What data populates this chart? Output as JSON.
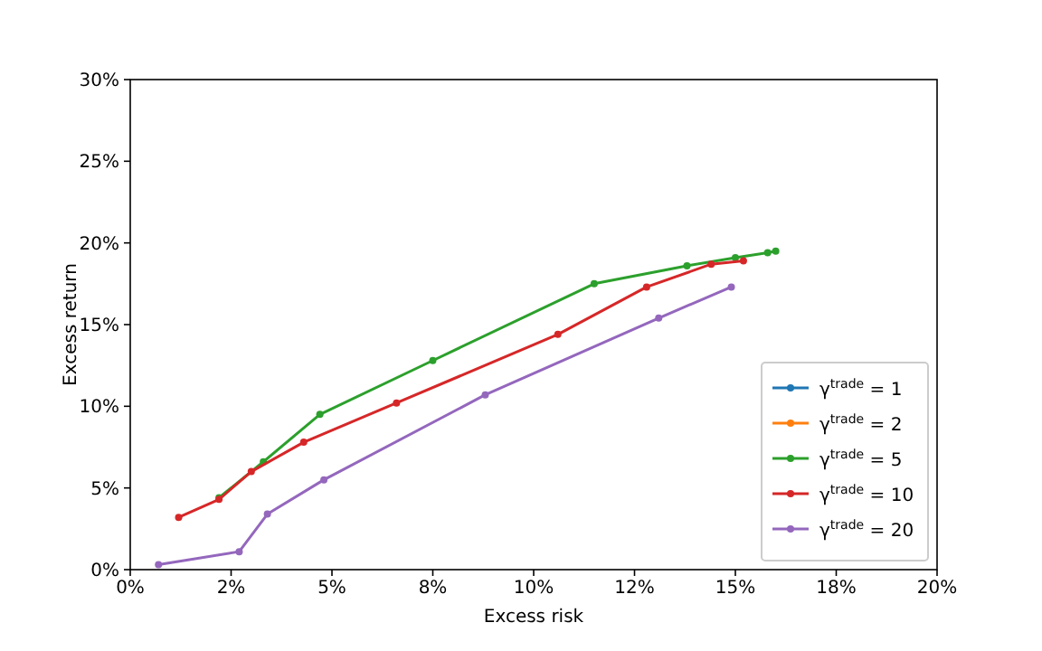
{
  "chart_data": {
    "type": "line",
    "xlabel": "Excess risk",
    "ylabel": "Excess return",
    "xlim": [
      0,
      20
    ],
    "ylim": [
      0,
      30
    ],
    "xticks": [
      {
        "value": 0,
        "label": "0%"
      },
      {
        "value": 2.5,
        "label": "2%"
      },
      {
        "value": 5,
        "label": "5%"
      },
      {
        "value": 7.5,
        "label": "8%"
      },
      {
        "value": 10,
        "label": "10%"
      },
      {
        "value": 12.5,
        "label": "12%"
      },
      {
        "value": 15,
        "label": "15%"
      },
      {
        "value": 17.5,
        "label": "18%"
      },
      {
        "value": 20,
        "label": "20%"
      }
    ],
    "yticks": [
      {
        "value": 0,
        "label": "0%"
      },
      {
        "value": 5,
        "label": "5%"
      },
      {
        "value": 10,
        "label": "10%"
      },
      {
        "value": 15,
        "label": "15%"
      },
      {
        "value": 20,
        "label": "20%"
      },
      {
        "value": 25,
        "label": "25%"
      },
      {
        "value": 30,
        "label": "30%"
      }
    ],
    "grid": false,
    "legend": "bottom right",
    "marker": "circle",
    "line_style": "solid",
    "series": [
      {
        "name": "γ$^{trade}$ = 1",
        "color": "#1f77b4"
      },
      {
        "name": "γ$^{trade}$ = 2",
        "color": "#ff7f0e"
      },
      {
        "name": "γ$^{trade}$ = 5",
        "color": "#2ca02c",
        "x": [
          2.2,
          3.3,
          4.7,
          7.5,
          11.5,
          13.8,
          15.0,
          15.8,
          16.0
        ],
        "values": [
          4.4,
          6.6,
          9.5,
          12.8,
          17.5,
          18.6,
          19.1,
          19.4,
          19.5
        ]
      },
      {
        "name": "γ$^{trade}$ = 10",
        "color": "#d62728",
        "x": [
          1.2,
          2.2,
          3.0,
          4.3,
          6.6,
          10.6,
          12.8,
          14.4,
          15.2
        ],
        "values": [
          3.2,
          4.3,
          6.0,
          7.8,
          10.2,
          14.4,
          17.3,
          18.7,
          18.9
        ]
      },
      {
        "name": "γ$^{trade}$ = 20",
        "color": "#9467bd",
        "x": [
          0.7,
          2.7,
          3.4,
          4.8,
          8.8,
          13.1,
          14.9
        ],
        "values": [
          0.3,
          1.1,
          3.4,
          5.5,
          10.7,
          15.4,
          17.3
        ]
      }
    ]
  }
}
